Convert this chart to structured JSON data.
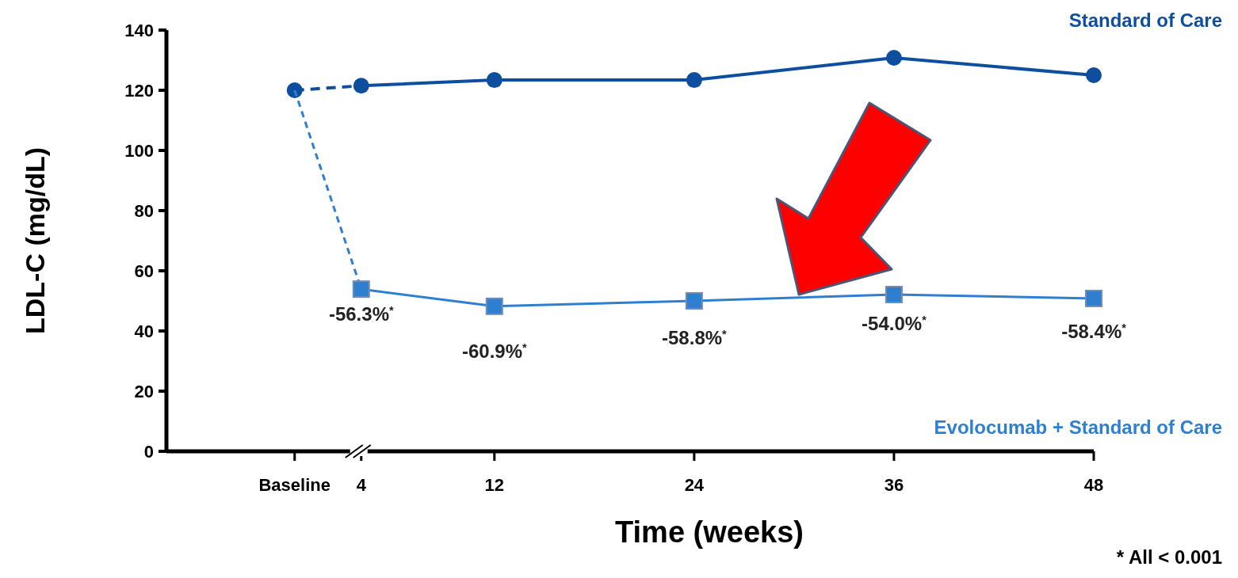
{
  "chart_data": {
    "type": "line",
    "xlabel": "Time (weeks)",
    "ylabel": "LDL-C (mg/dL)",
    "x": [
      0,
      4,
      12,
      24,
      36,
      48
    ],
    "xlim": [
      -7.7,
      48
    ],
    "xticks": [
      {
        "value": 0,
        "label": "Baseline"
      },
      4,
      12,
      24,
      36,
      48
    ],
    "ylim": [
      0,
      140
    ],
    "yticks": [
      0,
      20,
      40,
      60,
      80,
      100,
      120,
      140
    ],
    "grid": false,
    "series": [
      {
        "name": "Standard of Care",
        "color": "#0d4f9e",
        "marker": "circle",
        "values": [
          120,
          121.5,
          123.4,
          123.4,
          130.8,
          125
        ]
      },
      {
        "name": "Evolocumab + Standard of Care",
        "color": "#2f7fd0",
        "marker": "square",
        "values": [
          null,
          53.9,
          48.2,
          50,
          52.1,
          50.8
        ]
      }
    ],
    "annotations": [
      {
        "text": "-56.3%$^{*}$",
        "x": 4,
        "y": 53.9
      },
      {
        "text": "-60.9%$^{*}$",
        "x": 12,
        "y": 48.2
      },
      {
        "text": "-58.8%$^{*}$",
        "x": 24,
        "y": 50
      },
      {
        "text": "-54.0%$^{*}$",
        "x": 36,
        "y": 52.1
      },
      {
        "text": "-58.4%$^{*}$",
        "x": 48,
        "y": 50.8
      },
      "* All < 0.001"
    ]
  }
}
